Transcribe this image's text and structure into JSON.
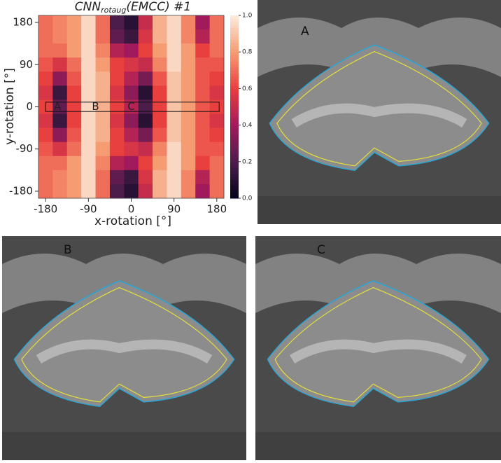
{
  "chart_data": {
    "type": "heatmap",
    "title": "CNN",
    "title_sub": "rotaug",
    "title_rest": "(EMCC)  #1",
    "x_label": "x-rotation [°]",
    "y_label": "y-rotation [°]",
    "x": [
      -180,
      -150,
      -120,
      -90,
      -60,
      -30,
      0,
      30,
      60,
      90,
      120,
      150,
      180
    ],
    "y": [
      180,
      150,
      120,
      90,
      60,
      30,
      0,
      -30,
      -60,
      -90,
      -120,
      -150,
      -180
    ],
    "z": [
      [
        0.7,
        0.75,
        0.8,
        0.95,
        0.7,
        0.2,
        0.1,
        0.5,
        0.85,
        0.95,
        0.75,
        0.4,
        0.7
      ],
      [
        0.7,
        0.75,
        0.8,
        0.95,
        0.7,
        0.25,
        0.15,
        0.55,
        0.85,
        0.95,
        0.75,
        0.45,
        0.7
      ],
      [
        0.7,
        0.7,
        0.8,
        0.95,
        0.75,
        0.45,
        0.4,
        0.6,
        0.8,
        0.95,
        0.8,
        0.6,
        0.7
      ],
      [
        0.65,
        0.55,
        0.7,
        0.95,
        0.8,
        0.6,
        0.55,
        0.5,
        0.75,
        0.95,
        0.8,
        0.65,
        0.65
      ],
      [
        0.6,
        0.35,
        0.65,
        0.95,
        0.85,
        0.6,
        0.45,
        0.3,
        0.65,
        0.9,
        0.8,
        0.65,
        0.6
      ],
      [
        0.55,
        0.15,
        0.6,
        0.95,
        0.85,
        0.55,
        0.35,
        0.1,
        0.6,
        0.9,
        0.8,
        0.65,
        0.55
      ],
      [
        0.6,
        0.25,
        0.6,
        0.95,
        0.85,
        0.6,
        0.45,
        0.2,
        0.6,
        0.9,
        0.8,
        0.65,
        0.6
      ],
      [
        0.55,
        0.15,
        0.6,
        0.95,
        0.85,
        0.55,
        0.35,
        0.1,
        0.6,
        0.9,
        0.8,
        0.65,
        0.55
      ],
      [
        0.6,
        0.35,
        0.65,
        0.95,
        0.85,
        0.6,
        0.45,
        0.3,
        0.65,
        0.9,
        0.8,
        0.65,
        0.6
      ],
      [
        0.65,
        0.55,
        0.7,
        0.95,
        0.8,
        0.6,
        0.55,
        0.5,
        0.75,
        0.95,
        0.8,
        0.65,
        0.65
      ],
      [
        0.7,
        0.7,
        0.8,
        0.95,
        0.75,
        0.45,
        0.4,
        0.6,
        0.8,
        0.95,
        0.8,
        0.6,
        0.7
      ],
      [
        0.7,
        0.75,
        0.8,
        0.95,
        0.7,
        0.25,
        0.15,
        0.55,
        0.85,
        0.95,
        0.75,
        0.45,
        0.7
      ],
      [
        0.7,
        0.75,
        0.8,
        0.95,
        0.7,
        0.2,
        0.1,
        0.5,
        0.85,
        0.95,
        0.75,
        0.4,
        0.7
      ]
    ],
    "xlim": [
      -195,
      195
    ],
    "ylim": [
      -195,
      195
    ],
    "xticks": [
      -180,
      -90,
      0,
      90,
      180
    ],
    "yticks": [
      -180,
      -90,
      0,
      90,
      180
    ],
    "zlim": [
      0,
      1
    ],
    "zticks": [
      {
        "value": 0,
        "label": "0.0"
      },
      {
        "value": 0.2,
        "label": "0.2"
      },
      {
        "value": 0.4,
        "label": "0.4"
      },
      {
        "value": 0.6,
        "label": "0.6"
      },
      {
        "value": 0.8,
        "label": "0.8"
      },
      {
        "value": 1,
        "label": "1.0"
      }
    ],
    "colormap": [
      "#03051a",
      "#4c1d4b",
      "#a11a5b",
      "#e83f3f",
      "#f69c73",
      "#faebdd"
    ],
    "annotations": [
      {
        "text": "A",
        "x": -155,
        "y": 0
      },
      {
        "text": "B",
        "x": -75,
        "y": 0
      },
      {
        "text": "C",
        "x": 0,
        "y": 0
      }
    ],
    "highlight": {
      "xlim": [
        -180,
        185
      ],
      "ylim": [
        -10,
        10
      ]
    }
  },
  "panels": [
    {
      "label": "A"
    },
    {
      "label": "B"
    },
    {
      "label": "C"
    }
  ]
}
